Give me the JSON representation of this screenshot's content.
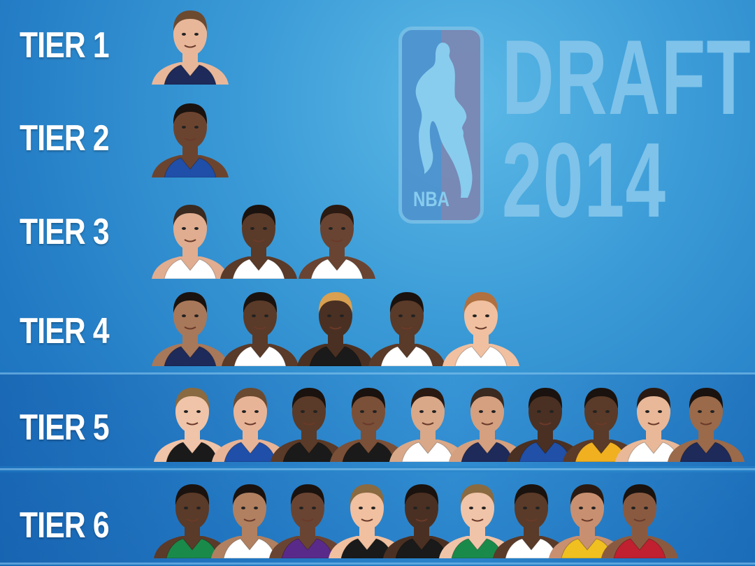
{
  "branding": {
    "logo_text": "NBA",
    "title_line1": "DRAFT",
    "title_line2": "2014"
  },
  "tiers": [
    {
      "label": "TIER 1",
      "players": [
        {
          "skin": "#e8b79a",
          "jersey": "#1d2a5a",
          "hair": "#6b4a30"
        }
      ]
    },
    {
      "label": "TIER 2",
      "players": [
        {
          "skin": "#6b4430",
          "jersey": "#1f4fa8",
          "hair": "#1a120e"
        }
      ]
    },
    {
      "label": "TIER 3",
      "players": [
        {
          "skin": "#e0ad90",
          "jersey": "#ffffff",
          "hair": "#3a2a20"
        },
        {
          "skin": "#5a3a28",
          "jersey": "#ffffff",
          "hair": "#1a120e"
        },
        {
          "skin": "#6a4432",
          "jersey": "#ffffff",
          "hair": "#2a1a12"
        }
      ]
    },
    {
      "label": "TIER 4",
      "players": [
        {
          "skin": "#a8785a",
          "jersey": "#1d2a5a",
          "hair": "#1a120e"
        },
        {
          "skin": "#5a3a28",
          "jersey": "#ffffff",
          "hair": "#1a120e"
        },
        {
          "skin": "#4a3022",
          "jersey": "#1a1a1a",
          "hair": "#d8a050"
        },
        {
          "skin": "#5a3a28",
          "jersey": "#ffffff",
          "hair": "#1a120e"
        },
        {
          "skin": "#f0c0a0",
          "jersey": "#ffffff",
          "hair": "#b07040"
        }
      ]
    },
    {
      "label": "TIER 5",
      "players": [
        {
          "skin": "#f0c4a8",
          "jersey": "#1a1a1a",
          "hair": "#8a6a40"
        },
        {
          "skin": "#e8b498",
          "jersey": "#1f4fa8",
          "hair": "#6a4a30"
        },
        {
          "skin": "#5a3a28",
          "jersey": "#1a1a1a",
          "hair": "#1a120e"
        },
        {
          "skin": "#7a5038",
          "jersey": "#1a1a1a",
          "hair": "#1a120e"
        },
        {
          "skin": "#d8a888",
          "jersey": "#ffffff",
          "hair": "#2a1a12"
        },
        {
          "skin": "#d4a080",
          "jersey": "#1d2a5a",
          "hair": "#3a2a20"
        },
        {
          "skin": "#4a3022",
          "jersey": "#2050a8",
          "hair": "#1a120e"
        },
        {
          "skin": "#5a3a28",
          "jersey": "#f0b020",
          "hair": "#1a120e"
        },
        {
          "skin": "#e8b898",
          "jersey": "#ffffff",
          "hair": "#2a1a12"
        },
        {
          "skin": "#9a6a4a",
          "jersey": "#1d2a5a",
          "hair": "#1a120e"
        }
      ]
    },
    {
      "label": "TIER 6",
      "players": [
        {
          "skin": "#5a3a28",
          "jersey": "#1a8a4a",
          "hair": "#1a120e"
        },
        {
          "skin": "#b08060",
          "jersey": "#ffffff",
          "hair": "#1a120e"
        },
        {
          "skin": "#6a4432",
          "jersey": "#5a2a8a",
          "hair": "#1a120e"
        },
        {
          "skin": "#f0c0a0",
          "jersey": "#1a1a1a",
          "hair": "#8a6a40"
        },
        {
          "skin": "#4a3022",
          "jersey": "#1a1a1a",
          "hair": "#1a120e"
        },
        {
          "skin": "#f0c4a8",
          "jersey": "#1a8a4a",
          "hair": "#8a6a40"
        },
        {
          "skin": "#5a3a28",
          "jersey": "#ffffff",
          "hair": "#1a120e"
        },
        {
          "skin": "#c89070",
          "jersey": "#f0c020",
          "hair": "#2a1a12"
        },
        {
          "skin": "#8a5a40",
          "jersey": "#c02030",
          "hair": "#1a120e"
        }
      ]
    }
  ]
}
